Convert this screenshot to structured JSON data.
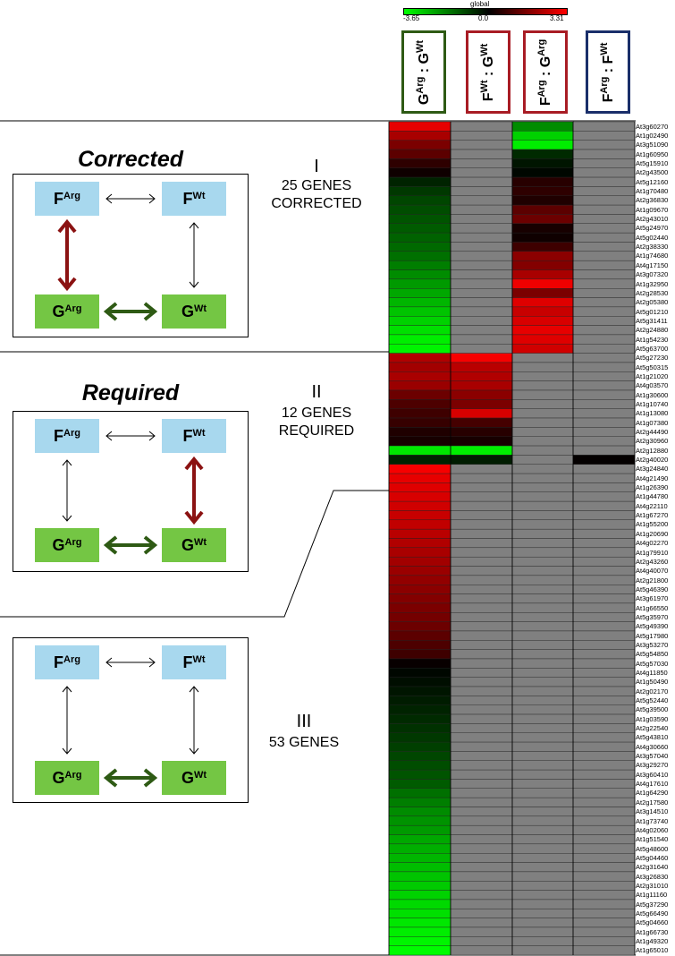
{
  "colorbar": {
    "title": "global",
    "min_label": "-3.65",
    "mid_label": "0.0",
    "max_label": "3.31"
  },
  "columns": [
    {
      "base_a": "G",
      "sup_a": "Arg",
      "sep": ":",
      "base_b": "G",
      "sup_b": "Wt",
      "border": "#2e5a14"
    },
    {
      "base_a": "F",
      "sup_a": "Wt",
      "sep": ":",
      "base_b": "G",
      "sup_b": "Wt",
      "border": "#a81c24"
    },
    {
      "base_a": "F",
      "sup_a": "Arg",
      "sep": ":",
      "base_b": "G",
      "sup_b": "Arg",
      "border": "#a81c24"
    },
    {
      "base_a": "F",
      "sup_a": "Arg",
      "sep": ":",
      "base_b": "F",
      "sup_b": "Wt",
      "border": "#1a2f6a"
    }
  ],
  "panels": [
    {
      "title": "Corrected",
      "roman": "I",
      "line1": "25 GENES",
      "line2": "CORRECTED",
      "nodes": {
        "f_arg_base": "F",
        "f_arg_sup": "Arg",
        "f_wt_base": "F",
        "f_wt_sup": "Wt",
        "g_arg_base": "G",
        "g_arg_sup": "Arg",
        "g_wt_base": "G",
        "g_wt_sup": "Wt"
      }
    },
    {
      "title": "Required",
      "roman": "II",
      "line1": "12 GENES",
      "line2": "REQUIRED",
      "nodes": {
        "f_arg_base": "F",
        "f_arg_sup": "Arg",
        "f_wt_base": "F",
        "f_wt_sup": "Wt",
        "g_arg_base": "G",
        "g_arg_sup": "Arg",
        "g_wt_base": "G",
        "g_wt_sup": "Wt"
      }
    },
    {
      "title": "",
      "roman": "III",
      "line1": "53 GENES",
      "line2": "",
      "nodes": {
        "f_arg_base": "F",
        "f_arg_sup": "Arg",
        "f_wt_base": "F",
        "f_wt_sup": "Wt",
        "g_arg_base": "G",
        "g_arg_sup": "Arg",
        "g_wt_base": "G",
        "g_wt_sup": "Wt"
      }
    }
  ],
  "heatmap": {
    "min": -3.65,
    "max": 3.31,
    "colors": {
      "neg": "#00ff00",
      "mid": "#000000",
      "pos": "#ff0000",
      "na": "#808080"
    },
    "rows": [
      {
        "gene": "At3g60270",
        "v": [
          3.0,
          null,
          -2.0,
          null
        ]
      },
      {
        "gene": "At1g02490",
        "v": [
          2.2,
          null,
          -3.0,
          null
        ]
      },
      {
        "gene": "At3g51090",
        "v": [
          1.6,
          null,
          -3.4,
          null
        ]
      },
      {
        "gene": "At1g60950",
        "v": [
          1.2,
          null,
          -0.6,
          null
        ]
      },
      {
        "gene": "At5g15910",
        "v": [
          0.6,
          null,
          -0.3,
          null
        ]
      },
      {
        "gene": "At2g43500",
        "v": [
          0.2,
          null,
          -0.1,
          null
        ]
      },
      {
        "gene": "At5g12160",
        "v": [
          -0.5,
          null,
          0.5,
          null
        ]
      },
      {
        "gene": "At1g70480",
        "v": [
          -0.8,
          null,
          0.6,
          null
        ]
      },
      {
        "gene": "At2g36830",
        "v": [
          -1.0,
          null,
          0.4,
          null
        ]
      },
      {
        "gene": "At1g09670",
        "v": [
          -1.1,
          null,
          1.2,
          null
        ]
      },
      {
        "gene": "At2g43010",
        "v": [
          -1.2,
          null,
          1.4,
          null
        ]
      },
      {
        "gene": "At5g24970",
        "v": [
          -1.3,
          null,
          0.3,
          null
        ]
      },
      {
        "gene": "At5g02440",
        "v": [
          -1.4,
          null,
          0.2,
          null
        ]
      },
      {
        "gene": "At2g38330",
        "v": [
          -1.5,
          null,
          0.8,
          null
        ]
      },
      {
        "gene": "At1g74680",
        "v": [
          -1.6,
          null,
          1.8,
          null
        ]
      },
      {
        "gene": "At4g17150",
        "v": [
          -1.8,
          null,
          1.7,
          null
        ]
      },
      {
        "gene": "At3g07320",
        "v": [
          -2.0,
          null,
          2.2,
          null
        ]
      },
      {
        "gene": "At1g32950",
        "v": [
          -2.2,
          null,
          3.1,
          null
        ]
      },
      {
        "gene": "At2g28530",
        "v": [
          -2.4,
          null,
          1.6,
          null
        ]
      },
      {
        "gene": "At2g05380",
        "v": [
          -2.6,
          null,
          2.9,
          null
        ]
      },
      {
        "gene": "At5g01210",
        "v": [
          -2.8,
          null,
          2.6,
          null
        ]
      },
      {
        "gene": "At5g31411",
        "v": [
          -3.0,
          null,
          2.8,
          null
        ]
      },
      {
        "gene": "At2g24880",
        "v": [
          -3.2,
          null,
          3.0,
          null
        ]
      },
      {
        "gene": "At1g54230",
        "v": [
          -3.4,
          null,
          2.9,
          null
        ]
      },
      {
        "gene": "At5g63700",
        "v": [
          -3.5,
          null,
          2.7,
          null
        ]
      },
      {
        "gene": "At5g27230",
        "v": [
          2.3,
          3.2,
          null,
          null
        ]
      },
      {
        "gene": "At5g50315",
        "v": [
          2.1,
          2.4,
          null,
          null
        ]
      },
      {
        "gene": "At1g21020",
        "v": [
          2.2,
          2.3,
          null,
          null
        ]
      },
      {
        "gene": "At4g03570",
        "v": [
          2.0,
          2.2,
          null,
          null
        ]
      },
      {
        "gene": "At1g30600",
        "v": [
          1.4,
          1.8,
          null,
          null
        ]
      },
      {
        "gene": "At1g10740",
        "v": [
          1.0,
          1.6,
          null,
          null
        ]
      },
      {
        "gene": "At1g13080",
        "v": [
          0.8,
          2.8,
          null,
          null
        ]
      },
      {
        "gene": "At1g07380",
        "v": [
          0.7,
          0.9,
          null,
          null
        ]
      },
      {
        "gene": "At2g44490",
        "v": [
          0.4,
          0.5,
          null,
          null
        ]
      },
      {
        "gene": "At2g30960",
        "v": [
          0.3,
          0.3,
          null,
          null
        ]
      },
      {
        "gene": "At2g12880",
        "v": [
          -3.3,
          -3.4,
          null,
          null
        ]
      },
      {
        "gene": "At2g40020",
        "v": [
          -0.5,
          -0.4,
          null,
          0.05
        ]
      },
      {
        "gene": "At3g24840",
        "v": [
          3.2,
          null,
          null,
          null
        ]
      },
      {
        "gene": "At4g21490",
        "v": [
          3.0,
          null,
          null,
          null
        ]
      },
      {
        "gene": "At1g26390",
        "v": [
          2.9,
          null,
          null,
          null
        ]
      },
      {
        "gene": "At1g44780",
        "v": [
          2.8,
          null,
          null,
          null
        ]
      },
      {
        "gene": "At4g22110",
        "v": [
          2.7,
          null,
          null,
          null
        ]
      },
      {
        "gene": "At1g67270",
        "v": [
          2.6,
          null,
          null,
          null
        ]
      },
      {
        "gene": "At1g55200",
        "v": [
          2.5,
          null,
          null,
          null
        ]
      },
      {
        "gene": "At1g20690",
        "v": [
          2.4,
          null,
          null,
          null
        ]
      },
      {
        "gene": "At4g02270",
        "v": [
          2.3,
          null,
          null,
          null
        ]
      },
      {
        "gene": "At1g79910",
        "v": [
          2.2,
          null,
          null,
          null
        ]
      },
      {
        "gene": "At2g43260",
        "v": [
          2.1,
          null,
          null,
          null
        ]
      },
      {
        "gene": "At4g40070",
        "v": [
          2.0,
          null,
          null,
          null
        ]
      },
      {
        "gene": "At2g21800",
        "v": [
          1.9,
          null,
          null,
          null
        ]
      },
      {
        "gene": "At5g46390",
        "v": [
          1.8,
          null,
          null,
          null
        ]
      },
      {
        "gene": "At3g61970",
        "v": [
          1.7,
          null,
          null,
          null
        ]
      },
      {
        "gene": "At1g66550",
        "v": [
          1.6,
          null,
          null,
          null
        ]
      },
      {
        "gene": "At5g35970",
        "v": [
          1.5,
          null,
          null,
          null
        ]
      },
      {
        "gene": "At5g49390",
        "v": [
          1.4,
          null,
          null,
          null
        ]
      },
      {
        "gene": "At5g17980",
        "v": [
          1.2,
          null,
          null,
          null
        ]
      },
      {
        "gene": "At3g53270",
        "v": [
          1.0,
          null,
          null,
          null
        ]
      },
      {
        "gene": "At5g54850",
        "v": [
          0.8,
          null,
          null,
          null
        ]
      },
      {
        "gene": "At5g57030",
        "v": [
          0.1,
          null,
          null,
          null
        ]
      },
      {
        "gene": "At4g11850",
        "v": [
          -0.1,
          null,
          null,
          null
        ]
      },
      {
        "gene": "At1g50490",
        "v": [
          -0.2,
          null,
          null,
          null
        ]
      },
      {
        "gene": "At2g02170",
        "v": [
          -0.3,
          null,
          null,
          null
        ]
      },
      {
        "gene": "At5g52440",
        "v": [
          -0.4,
          null,
          null,
          null
        ]
      },
      {
        "gene": "At5g39500",
        "v": [
          -0.5,
          null,
          null,
          null
        ]
      },
      {
        "gene": "At1g03590",
        "v": [
          -0.6,
          null,
          null,
          null
        ]
      },
      {
        "gene": "At2g22540",
        "v": [
          -0.7,
          null,
          null,
          null
        ]
      },
      {
        "gene": "At5g43810",
        "v": [
          -0.8,
          null,
          null,
          null
        ]
      },
      {
        "gene": "At4g30660",
        "v": [
          -0.9,
          null,
          null,
          null
        ]
      },
      {
        "gene": "At3g57040",
        "v": [
          -1.0,
          null,
          null,
          null
        ]
      },
      {
        "gene": "At3g29270",
        "v": [
          -1.1,
          null,
          null,
          null
        ]
      },
      {
        "gene": "At3g60410",
        "v": [
          -1.2,
          null,
          null,
          null
        ]
      },
      {
        "gene": "At4g17610",
        "v": [
          -1.3,
          null,
          null,
          null
        ]
      },
      {
        "gene": "At1g64290",
        "v": [
          -1.6,
          null,
          null,
          null
        ]
      },
      {
        "gene": "At2g17580",
        "v": [
          -1.8,
          null,
          null,
          null
        ]
      },
      {
        "gene": "At3g14510",
        "v": [
          -2.0,
          null,
          null,
          null
        ]
      },
      {
        "gene": "At1g73740",
        "v": [
          -2.1,
          null,
          null,
          null
        ]
      },
      {
        "gene": "At4g02060",
        "v": [
          -2.2,
          null,
          null,
          null
        ]
      },
      {
        "gene": "At1g51540",
        "v": [
          -2.4,
          null,
          null,
          null
        ]
      },
      {
        "gene": "At5g48600",
        "v": [
          -2.5,
          null,
          null,
          null
        ]
      },
      {
        "gene": "At5g04460",
        "v": [
          -2.6,
          null,
          null,
          null
        ]
      },
      {
        "gene": "At2g31640",
        "v": [
          -2.7,
          null,
          null,
          null
        ]
      },
      {
        "gene": "At3g26830",
        "v": [
          -2.8,
          null,
          null,
          null
        ]
      },
      {
        "gene": "At2g31010",
        "v": [
          -2.9,
          null,
          null,
          null
        ]
      },
      {
        "gene": "At1g11160",
        "v": [
          -3.0,
          null,
          null,
          null
        ]
      },
      {
        "gene": "At5g37290",
        "v": [
          -3.1,
          null,
          null,
          null
        ]
      },
      {
        "gene": "At5g66490",
        "v": [
          -3.2,
          null,
          null,
          null
        ]
      },
      {
        "gene": "At5g04660",
        "v": [
          -3.3,
          null,
          null,
          null
        ]
      },
      {
        "gene": "At1g66730",
        "v": [
          -3.4,
          null,
          null,
          null
        ]
      },
      {
        "gene": "At1g49320",
        "v": [
          -3.5,
          null,
          null,
          null
        ]
      },
      {
        "gene": "At1g65010",
        "v": [
          -3.6,
          null,
          null,
          null
        ]
      }
    ]
  }
}
